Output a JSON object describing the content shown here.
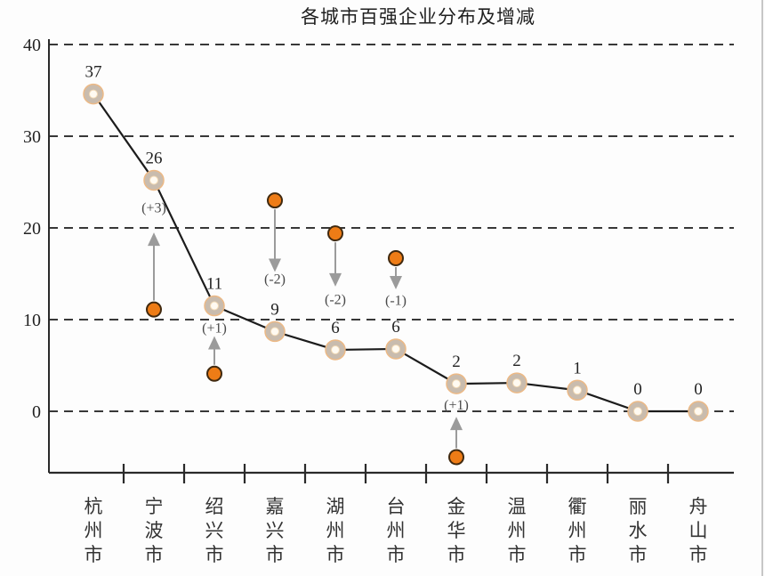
{
  "title": "各城市百强企业分布及增减",
  "chart_data": {
    "type": "line",
    "title": "各城市百强企业分布及增减",
    "xlabel": "",
    "ylabel": "",
    "categories": [
      "杭州市",
      "宁波市",
      "绍兴市",
      "嘉兴市",
      "湖州市",
      "台州市",
      "金华市",
      "温州市",
      "衢州市",
      "丽水市",
      "舟山市"
    ],
    "values": [
      37,
      26,
      11,
      9,
      6,
      6,
      2,
      2,
      1,
      0,
      0
    ],
    "changes": [
      null,
      "(+3)",
      "(+1)",
      "(-2)",
      "(-2)",
      "(-1)",
      "(+1)",
      null,
      null,
      null,
      null
    ],
    "plotted_values": [
      34.6,
      25.2,
      11.5,
      8.7,
      6.7,
      6.8,
      3.0,
      3.1,
      2.3,
      0,
      0
    ],
    "yticks": [
      0,
      10,
      20,
      30,
      40
    ],
    "ylim": [
      -7,
      40
    ],
    "grid": "dashed-horizontal",
    "legend": "none",
    "annotations": [
      {
        "city": "宁波市",
        "index": 1,
        "change": "(+3)",
        "direction": "up",
        "dot_value": 11.1,
        "arrow_tip_value": 19.5,
        "label_value": 22.2
      },
      {
        "city": "绍兴市",
        "index": 2,
        "change": "(+1)",
        "direction": "up",
        "dot_value": 4.1,
        "arrow_tip_value": 8.2,
        "label_value": 9.1
      },
      {
        "city": "嘉兴市",
        "index": 3,
        "change": "(-2)",
        "direction": "down",
        "dot_value": 23.0,
        "arrow_tip_value": 15.2,
        "label_value": 14.4
      },
      {
        "city": "湖州市",
        "index": 4,
        "change": "(-2)",
        "direction": "down",
        "dot_value": 19.4,
        "arrow_tip_value": 13.6,
        "label_value": 12.2
      },
      {
        "city": "台州市",
        "index": 5,
        "change": "(-1)",
        "direction": "down",
        "dot_value": 16.7,
        "arrow_tip_value": 13.3,
        "label_value": 12.1
      },
      {
        "city": "金华市",
        "index": 6,
        "change": "(+1)",
        "direction": "up",
        "dot_value": -5.0,
        "arrow_tip_value": -0.6,
        "label_value": 0.7
      }
    ],
    "colors": {
      "line": "#1c1c1c",
      "marker_fill": "#c9bcae",
      "marker_ring": "#ecb986",
      "marker_hole": "#fffaf1",
      "marker_hole_ring": "#f2d9b4",
      "dot_fill": "#ee7c16",
      "dot_stroke": "#40290f",
      "arrow": "#9b9b9b",
      "grid": "#1c1c1c",
      "axis": "#2a2a2a",
      "text": "#222222",
      "change_text": "#4a4a4a",
      "city_text": "#333333",
      "background": "#fdfdfd",
      "right_border": "#b5b5b5"
    }
  }
}
